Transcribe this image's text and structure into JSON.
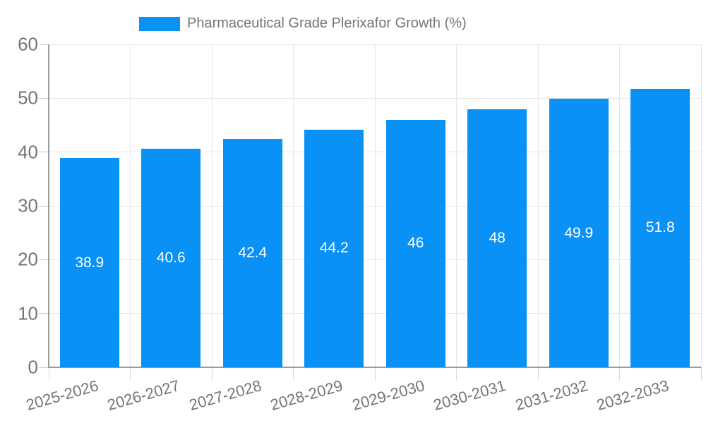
{
  "legend": {
    "series_label": "Pharmaceutical Grade Plerixafor Growth (%)"
  },
  "chart_data": {
    "type": "bar",
    "title": "Pharmaceutical Grade Plerixafor Growth (%)",
    "categories": [
      "2025-2026",
      "2026-2027",
      "2027-2028",
      "2028-2029",
      "2029-2030",
      "2030-2031",
      "2031-2032",
      "2032-2033"
    ],
    "values": [
      38.9,
      40.6,
      42.4,
      44.2,
      46,
      48,
      49.9,
      51.8
    ],
    "value_labels": [
      "38.9",
      "40.6",
      "42.4",
      "44.2",
      "46",
      "48",
      "49.9",
      "51.8"
    ],
    "xlabel": "",
    "ylabel": "",
    "ylim": [
      0,
      60
    ],
    "yticks": [
      0,
      10,
      20,
      30,
      40,
      50,
      60
    ],
    "grid": true,
    "legend_position": "top",
    "colors": {
      "bar": "#0991f5",
      "axis_text": "#757575",
      "gridline": "#e6e6e6",
      "axis_line": "#9a9a9a",
      "value_label": "#ffffff"
    }
  }
}
